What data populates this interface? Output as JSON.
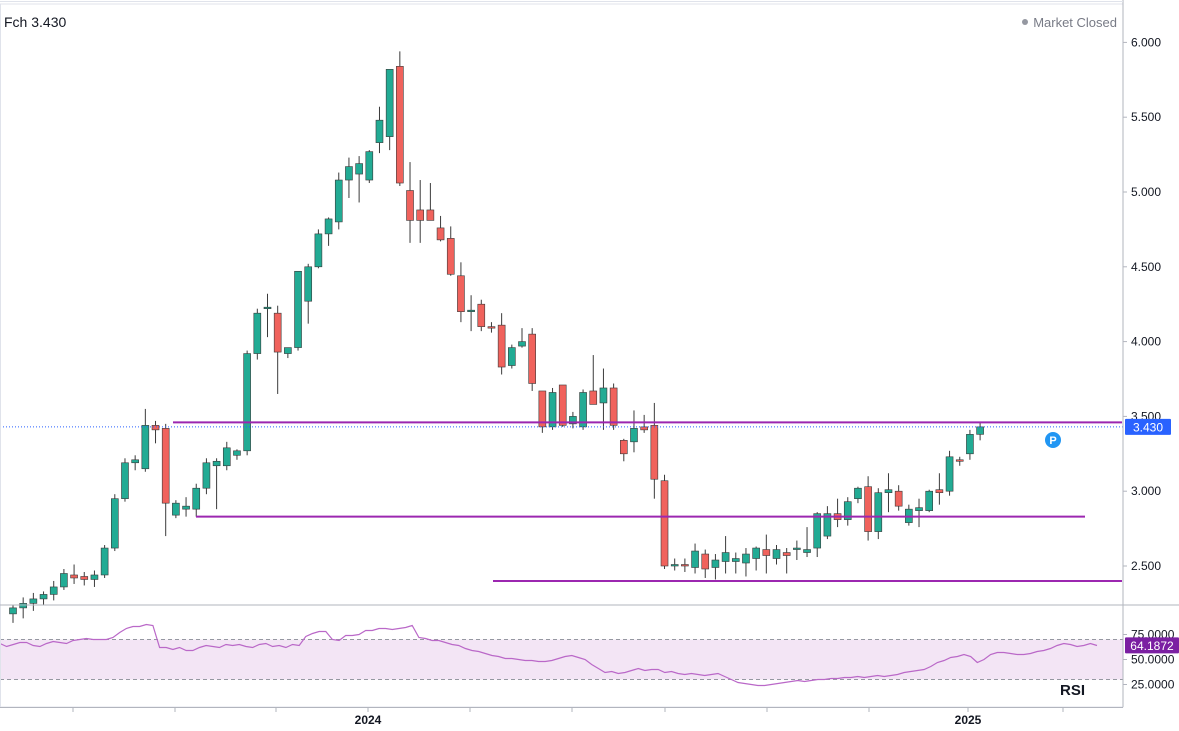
{
  "header": {
    "ticker_label": "Fch 3.430",
    "status_label": "Market Closed"
  },
  "rsi_label": "RSI",
  "colors": {
    "up": "#22ab94",
    "down": "#f0625c",
    "level": "#9c27b0",
    "rsi": "#ba68c8",
    "rsi_band": "#f3e5f5",
    "price_tag": "#2962ff",
    "rsi_tag": "#7b1fa2",
    "marker": "#2196f3"
  },
  "marker_label": "P",
  "chart_data": [
    {
      "type": "candlestick",
      "title": "",
      "y_ticks": [
        "6.000",
        "5.500",
        "5.000",
        "4.500",
        "4.000",
        "3.500",
        "3.000",
        "2.500"
      ],
      "x_ticks": [
        "",
        "",
        "",
        "",
        "2024",
        "",
        "",
        "",
        "",
        "",
        "",
        "2025",
        ""
      ],
      "ylim": [
        2.3,
        6.2
      ],
      "last_price": 3.43,
      "last_price_label": "3.430",
      "horizontal_levels": [
        {
          "price": 3.46,
          "from_index": 18,
          "to_index": 107
        },
        {
          "price": 2.83,
          "from_index": 20,
          "to_index": 104
        },
        {
          "price": 2.4,
          "from_index": 48,
          "to_index": 108
        }
      ],
      "marker_index": 103,
      "marker_price": 3.34,
      "candles": [
        [
          2.18,
          2.24,
          2.12,
          2.22
        ],
        [
          2.22,
          2.29,
          2.15,
          2.25
        ],
        [
          2.25,
          2.32,
          2.2,
          2.28
        ],
        [
          2.28,
          2.33,
          2.24,
          2.31
        ],
        [
          2.31,
          2.4,
          2.27,
          2.36
        ],
        [
          2.36,
          2.48,
          2.34,
          2.45
        ],
        [
          2.44,
          2.51,
          2.38,
          2.42
        ],
        [
          2.43,
          2.46,
          2.37,
          2.41
        ],
        [
          2.41,
          2.47,
          2.36,
          2.44
        ],
        [
          2.44,
          2.64,
          2.42,
          2.62
        ],
        [
          2.62,
          2.98,
          2.6,
          2.95
        ],
        [
          2.95,
          3.22,
          2.93,
          3.19
        ],
        [
          3.19,
          3.24,
          3.14,
          3.21
        ],
        [
          3.15,
          3.55,
          3.13,
          3.44
        ],
        [
          3.44,
          3.47,
          3.32,
          3.41
        ],
        [
          3.42,
          3.45,
          2.7,
          2.92
        ],
        [
          2.84,
          2.94,
          2.82,
          2.92
        ],
        [
          2.88,
          2.96,
          2.83,
          2.9
        ],
        [
          2.88,
          3.05,
          2.83,
          3.02
        ],
        [
          3.02,
          3.22,
          2.98,
          3.19
        ],
        [
          3.17,
          3.22,
          2.88,
          3.2
        ],
        [
          3.17,
          3.33,
          3.14,
          3.29
        ],
        [
          3.24,
          3.28,
          3.21,
          3.27
        ],
        [
          3.27,
          3.94,
          3.24,
          3.92
        ],
        [
          3.92,
          4.22,
          3.88,
          4.19
        ],
        [
          4.23,
          4.32,
          4.03,
          4.23
        ],
        [
          4.19,
          4.24,
          3.65,
          3.93
        ],
        [
          3.92,
          3.96,
          3.89,
          3.96
        ],
        [
          3.96,
          4.45,
          3.94,
          4.47
        ],
        [
          4.27,
          4.52,
          4.12,
          4.5
        ],
        [
          4.5,
          4.75,
          4.49,
          4.72
        ],
        [
          4.72,
          4.83,
          4.64,
          4.82
        ],
        [
          4.8,
          5.13,
          4.75,
          5.08
        ],
        [
          5.08,
          5.23,
          4.96,
          5.17
        ],
        [
          5.12,
          5.24,
          4.93,
          5.19
        ],
        [
          5.08,
          5.28,
          5.06,
          5.27
        ],
        [
          5.33,
          5.57,
          5.26,
          5.48
        ],
        [
          5.37,
          5.8,
          5.28,
          5.82
        ],
        [
          5.84,
          5.94,
          5.04,
          5.06
        ],
        [
          5.01,
          5.2,
          4.66,
          4.81
        ],
        [
          4.88,
          5.08,
          4.66,
          4.81
        ],
        [
          4.88,
          5.06,
          4.83,
          4.81
        ],
        [
          4.76,
          4.84,
          4.67,
          4.68
        ],
        [
          4.69,
          4.77,
          4.44,
          4.45
        ],
        [
          4.44,
          4.53,
          4.13,
          4.2
        ],
        [
          4.2,
          4.31,
          4.07,
          4.21
        ],
        [
          4.25,
          4.28,
          4.07,
          4.1
        ],
        [
          4.1,
          4.13,
          4.06,
          4.09
        ],
        [
          4.11,
          4.19,
          3.78,
          3.83
        ],
        [
          3.84,
          3.98,
          3.82,
          3.96
        ],
        [
          3.97,
          4.09,
          3.96,
          4.0
        ],
        [
          4.05,
          4.09,
          3.67,
          3.72
        ],
        [
          3.67,
          3.64,
          3.39,
          3.43
        ],
        [
          3.43,
          3.69,
          3.41,
          3.66
        ],
        [
          3.71,
          3.71,
          3.43,
          3.44
        ],
        [
          3.45,
          3.53,
          3.42,
          3.5
        ],
        [
          3.43,
          3.68,
          3.41,
          3.66
        ],
        [
          3.67,
          3.91,
          3.59,
          3.58
        ],
        [
          3.59,
          3.82,
          3.41,
          3.69
        ],
        [
          3.69,
          3.72,
          3.41,
          3.44
        ],
        [
          3.34,
          3.35,
          3.2,
          3.25
        ],
        [
          3.33,
          3.54,
          3.26,
          3.42
        ],
        [
          3.43,
          3.51,
          3.39,
          3.41
        ],
        [
          3.44,
          3.59,
          2.95,
          3.08
        ],
        [
          3.07,
          3.11,
          2.48,
          2.5
        ],
        [
          2.5,
          2.55,
          2.47,
          2.51
        ],
        [
          2.51,
          2.55,
          2.46,
          2.5
        ],
        [
          2.49,
          2.65,
          2.45,
          2.6
        ],
        [
          2.58,
          2.61,
          2.42,
          2.48
        ],
        [
          2.49,
          2.58,
          2.41,
          2.54
        ],
        [
          2.53,
          2.7,
          2.45,
          2.59
        ],
        [
          2.53,
          2.59,
          2.45,
          2.55
        ],
        [
          2.52,
          2.62,
          2.43,
          2.58
        ],
        [
          2.55,
          2.63,
          2.47,
          2.62
        ],
        [
          2.61,
          2.71,
          2.45,
          2.57
        ],
        [
          2.55,
          2.64,
          2.51,
          2.61
        ],
        [
          2.59,
          2.62,
          2.45,
          2.57
        ],
        [
          2.61,
          2.67,
          2.54,
          2.62
        ],
        [
          2.59,
          2.76,
          2.56,
          2.61
        ],
        [
          2.62,
          2.86,
          2.56,
          2.85
        ],
        [
          2.7,
          2.9,
          2.68,
          2.85
        ],
        [
          2.85,
          2.95,
          2.76,
          2.81
        ],
        [
          2.81,
          2.96,
          2.77,
          2.93
        ],
        [
          2.95,
          3.03,
          2.92,
          3.02
        ],
        [
          3.03,
          3.1,
          2.67,
          2.73
        ],
        [
          2.73,
          3.02,
          2.68,
          2.99
        ],
        [
          2.99,
          3.12,
          2.86,
          3.01
        ],
        [
          3.0,
          3.04,
          2.87,
          2.9
        ],
        [
          2.79,
          2.91,
          2.77,
          2.88
        ],
        [
          2.87,
          2.95,
          2.76,
          2.89
        ],
        [
          2.87,
          3.01,
          2.86,
          3.0
        ],
        [
          3.01,
          3.12,
          2.91,
          2.99
        ],
        [
          3.0,
          3.27,
          2.97,
          3.23
        ],
        [
          3.21,
          3.23,
          3.17,
          3.2
        ],
        [
          3.25,
          3.41,
          3.21,
          3.38
        ],
        [
          3.38,
          3.46,
          3.34,
          3.43
        ]
      ]
    },
    {
      "type": "line",
      "title": "RSI",
      "y_ticks": [
        "75.0000",
        "50.0000",
        "25.0000"
      ],
      "ylim": [
        15,
        92
      ],
      "band": [
        30,
        70
      ],
      "last_value": 64.1872,
      "last_value_label": "64.1872",
      "values": [
        66,
        63,
        65,
        67,
        67,
        64,
        63,
        66,
        68,
        67,
        66,
        69,
        70,
        71,
        70,
        70,
        70,
        72,
        77,
        81,
        83,
        83,
        85,
        84,
        62,
        62,
        60,
        62,
        59,
        59,
        62,
        64,
        63,
        62,
        65,
        64,
        65,
        63,
        62,
        65,
        66,
        63,
        64,
        62,
        65,
        64,
        73,
        76,
        78,
        78,
        70,
        69,
        74,
        74,
        75,
        79,
        79,
        81,
        81,
        80,
        81,
        82,
        84,
        72,
        71,
        69,
        69,
        67,
        65,
        64,
        61,
        59,
        58,
        56,
        54,
        53,
        51,
        51,
        50,
        49,
        49,
        48,
        48,
        49,
        51,
        53,
        54,
        52,
        50,
        45,
        41,
        37,
        38,
        36,
        37,
        39,
        41,
        39,
        40,
        40,
        37,
        38,
        36,
        35,
        36,
        35,
        34,
        35,
        36,
        33,
        30,
        27,
        26,
        25,
        24,
        24,
        25,
        26,
        27,
        28,
        29,
        28,
        29,
        30,
        30,
        31,
        31,
        32,
        32,
        33,
        32,
        33,
        34,
        33,
        34,
        35,
        37,
        38,
        39,
        40,
        43,
        47,
        49,
        52,
        53,
        55,
        53,
        47,
        50,
        55,
        57,
        57,
        56,
        55,
        55,
        56,
        58,
        59,
        61,
        64,
        66,
        65,
        63,
        64,
        66,
        64
      ]
    }
  ]
}
